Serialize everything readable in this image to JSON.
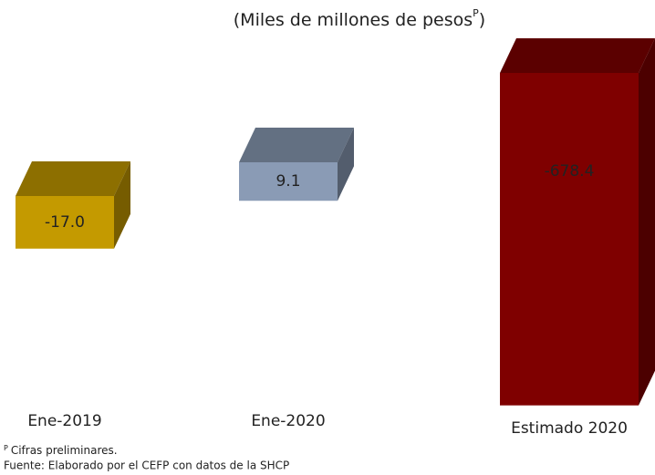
{
  "chart_data": {
    "type": "bar3d",
    "subtitle": [
      "(Miles de millones de pesos",
      "P",
      ")"
    ],
    "categories": [
      "Ene-2019",
      "Ene-2020",
      "Estimado 2020"
    ],
    "values": [
      -17.0,
      9.1,
      -678.4
    ],
    "value_labels": [
      "-17.0",
      "9.1",
      "-678.4"
    ],
    "colors": [
      "#c49a00",
      "#8a9bb5",
      "#7f0000"
    ],
    "notes": [
      "P",
      "Cifras preliminares."
    ],
    "source": "Fuente: Elaborado por el CEFP con datos de la SHCP"
  }
}
